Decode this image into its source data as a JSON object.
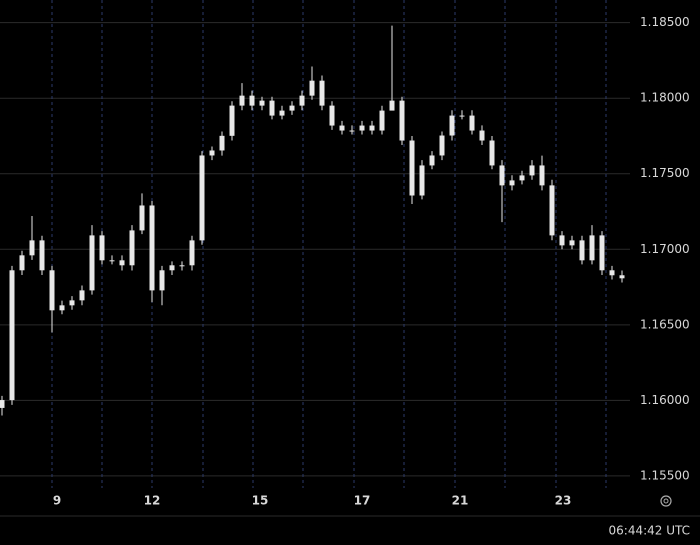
{
  "chart_data": {
    "type": "candlestick",
    "color": "#e8e8e8",
    "open": [
      1.1595,
      1.16002,
      1.16861,
      1.1696,
      1.17059,
      1.16861,
      1.16596,
      1.16629,
      1.16662,
      1.16728,
      1.17092,
      1.16927,
      1.16927,
      1.16894,
      1.17125,
      1.1729,
      1.16728,
      1.16861,
      1.16894,
      1.16894,
      1.17059,
      1.17621,
      1.17654,
      1.17751,
      1.17951,
      1.18017,
      1.17951,
      1.17984,
      1.17885,
      1.17918,
      1.17951,
      1.18017,
      1.18116,
      1.17951,
      1.17819,
      1.17786,
      1.17786,
      1.17819,
      1.17786,
      1.17918,
      1.17984,
      1.1772,
      1.17356,
      1.17555,
      1.17621,
      1.17753,
      1.17885,
      1.17885,
      1.17786,
      1.1772,
      1.17555,
      1.17423,
      1.17456,
      1.17489,
      1.17555,
      1.17423,
      1.17092,
      1.17026,
      1.17059,
      1.16927,
      1.17092,
      1.16861,
      1.16828
    ],
    "high": [
      1.1603,
      1.1689,
      1.1699,
      1.1722,
      1.1709,
      1.1689,
      1.1666,
      1.1669,
      1.1676,
      1.1716,
      1.1712,
      1.1696,
      1.1696,
      1.1716,
      1.1737,
      1.1732,
      1.1689,
      1.1692,
      1.1692,
      1.1709,
      1.1765,
      1.1768,
      1.1778,
      1.1798,
      1.181,
      1.1805,
      1.1801,
      1.1801,
      1.1795,
      1.1798,
      1.1805,
      1.1821,
      1.1815,
      1.1798,
      1.1785,
      1.1782,
      1.1785,
      1.1785,
      1.1795,
      1.1848,
      1.1801,
      1.1775,
      1.1759,
      1.1765,
      1.1778,
      1.1792,
      1.1792,
      1.1792,
      1.1782,
      1.1775,
      1.1759,
      1.1749,
      1.1752,
      1.1759,
      1.1762,
      1.1746,
      1.1712,
      1.1709,
      1.1709,
      1.1716,
      1.1712,
      1.1689,
      1.1686
    ],
    "low": [
      1.159,
      1.1597,
      1.1683,
      1.1693,
      1.1683,
      1.1645,
      1.1657,
      1.166,
      1.1663,
      1.167,
      1.169,
      1.169,
      1.1686,
      1.1686,
      1.171,
      1.1665,
      1.1663,
      1.1683,
      1.1686,
      1.1686,
      1.1703,
      1.1759,
      1.1762,
      1.1772,
      1.1792,
      1.1792,
      1.1792,
      1.1786,
      1.1786,
      1.1789,
      1.1792,
      1.1799,
      1.1792,
      1.1779,
      1.1776,
      1.1776,
      1.1776,
      1.1776,
      1.1776,
      1.1795,
      1.1769,
      1.173,
      1.1733,
      1.1753,
      1.1759,
      1.1772,
      1.1786,
      1.1776,
      1.1769,
      1.1753,
      1.1718,
      1.1739,
      1.1743,
      1.1746,
      1.1739,
      1.1706,
      1.17,
      1.17,
      1.169,
      1.169,
      1.1683,
      1.168,
      1.1678
    ],
    "close": [
      1.16002,
      1.16861,
      1.1696,
      1.17059,
      1.16861,
      1.16596,
      1.16629,
      1.16662,
      1.16728,
      1.17092,
      1.16927,
      1.16927,
      1.16894,
      1.17125,
      1.1729,
      1.16728,
      1.16861,
      1.16894,
      1.16894,
      1.17059,
      1.17621,
      1.17654,
      1.17751,
      1.17951,
      1.18017,
      1.17951,
      1.17984,
      1.17885,
      1.17918,
      1.17951,
      1.18017,
      1.18116,
      1.17951,
      1.17819,
      1.17786,
      1.17786,
      1.17819,
      1.17786,
      1.17918,
      1.17984,
      1.1772,
      1.17356,
      1.17555,
      1.17621,
      1.17753,
      1.17885,
      1.17885,
      1.17786,
      1.1772,
      1.17555,
      1.17423,
      1.17456,
      1.17489,
      1.17555,
      1.17423,
      1.17092,
      1.17026,
      1.17059,
      1.16927,
      1.17092,
      1.16861,
      1.16828,
      1.16808
    ],
    "xlim": [
      -0.2,
      62.8
    ],
    "xticks": [
      {
        "value": 5.5,
        "label": "9"
      },
      {
        "value": 15,
        "label": "12"
      },
      {
        "value": 25.8,
        "label": "15"
      },
      {
        "value": 36,
        "label": "17"
      },
      {
        "value": 45.8,
        "label": "21"
      },
      {
        "value": 56.1,
        "label": "23"
      }
    ],
    "xgrid": [
      5,
      10,
      15,
      20.1,
      25.1,
      30.1,
      35.2,
      40.2,
      45.3,
      50.3,
      55.4,
      60.4
    ],
    "ylim": [
      1.1542,
      1.1865
    ],
    "yticks": [
      {
        "value": 1.155,
        "label": "1.15500"
      },
      {
        "value": 1.16,
        "label": "1.16000"
      },
      {
        "value": 1.165,
        "label": "1.16500"
      },
      {
        "value": 1.17,
        "label": "1.17000"
      },
      {
        "value": 1.175,
        "label": "1.17500"
      },
      {
        "value": 1.18,
        "label": "1.18000"
      },
      {
        "value": 1.185,
        "label": "1.18500"
      }
    ],
    "grid": true,
    "clock": "06:44:42 UTC"
  }
}
